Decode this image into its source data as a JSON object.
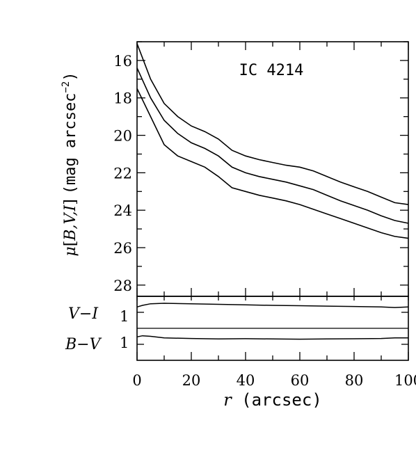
{
  "chart_data": [
    {
      "type": "line",
      "title": "IC 4214",
      "ylabel": "μ[B,V,I] (mag arcsec^-2)",
      "xlabel": "",
      "xlim": [
        0,
        100
      ],
      "ylim": [
        28.6,
        15.0
      ],
      "y_inverted": true,
      "y_ticks": [
        16,
        18,
        20,
        22,
        24,
        26,
        28
      ],
      "series": [
        {
          "x": [
            0,
            5,
            10,
            15,
            20,
            25,
            30,
            35,
            40,
            45,
            50,
            55,
            60,
            65,
            70,
            75,
            80,
            85,
            90,
            95,
            100
          ],
          "values": [
            15.1,
            17.0,
            18.3,
            19.0,
            19.5,
            19.8,
            20.2,
            20.8,
            21.1,
            21.3,
            21.45,
            21.6,
            21.7,
            21.9,
            22.2,
            22.5,
            22.75,
            23.0,
            23.3,
            23.6,
            23.7
          ]
        },
        {
          "x": [
            0,
            5,
            10,
            15,
            20,
            25,
            30,
            35,
            40,
            45,
            50,
            55,
            60,
            65,
            70,
            75,
            80,
            85,
            90,
            95,
            100
          ],
          "values": [
            16.4,
            18.0,
            19.2,
            19.9,
            20.4,
            20.7,
            21.1,
            21.7,
            22.0,
            22.2,
            22.35,
            22.5,
            22.7,
            22.9,
            23.2,
            23.5,
            23.75,
            24.0,
            24.3,
            24.55,
            24.7
          ]
        },
        {
          "x": [
            0,
            5,
            10,
            15,
            20,
            25,
            30,
            35,
            40,
            45,
            50,
            55,
            60,
            65,
            70,
            75,
            80,
            85,
            90,
            95,
            100
          ],
          "values": [
            17.5,
            19.0,
            20.5,
            21.1,
            21.4,
            21.7,
            22.2,
            22.8,
            23.0,
            23.2,
            23.35,
            23.5,
            23.7,
            23.95,
            24.2,
            24.45,
            24.7,
            24.95,
            25.2,
            25.4,
            25.5
          ]
        }
      ]
    },
    {
      "type": "line",
      "title": "",
      "xlabel": "r (arcsec)",
      "x_ticks": [
        0,
        20,
        40,
        60,
        80,
        100
      ],
      "xlim": [
        0,
        100
      ],
      "row_labels": [
        "V−I",
        "B−V"
      ],
      "row_values": [
        "1",
        "1"
      ],
      "series": [
        {
          "x": [
            0,
            2,
            5,
            10,
            20,
            30,
            40,
            50,
            60,
            70,
            80,
            90,
            95,
            100
          ],
          "values": [
            1.0,
            0.85,
            0.7,
            0.65,
            0.7,
            0.75,
            0.8,
            0.85,
            0.88,
            0.92,
            0.95,
            1.0,
            1.05,
            1.0
          ]
        },
        {
          "x": [
            0,
            2,
            5,
            10,
            20,
            30,
            40,
            50,
            60,
            70,
            80,
            90,
            95,
            100
          ],
          "values": [
            3.8,
            3.7,
            3.75,
            3.9,
            3.95,
            4.0,
            3.97,
            4.0,
            4.02,
            4.0,
            3.98,
            3.95,
            3.9,
            3.9
          ]
        }
      ]
    }
  ]
}
